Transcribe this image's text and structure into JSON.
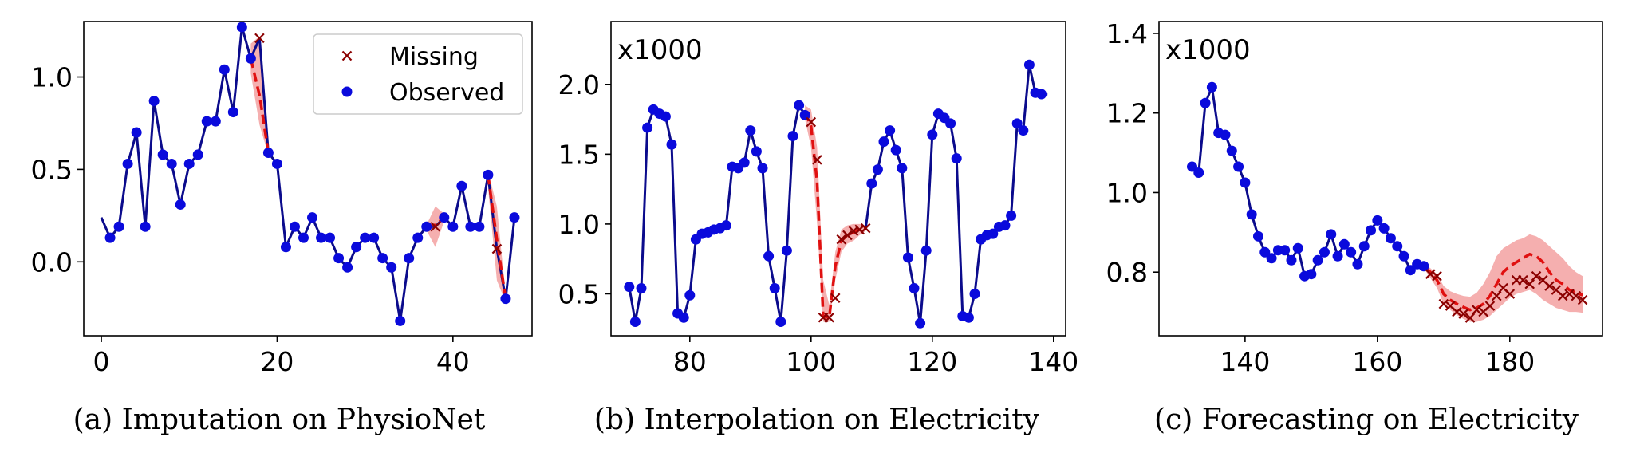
{
  "colors": {
    "observed": "#0a0adc",
    "observed_line": "#0b0b8c",
    "missing": "#8b0000",
    "pred_line": "#e01010",
    "band": "#f4a6a6"
  },
  "chart_data": [
    {
      "type": "line",
      "caption": "(a)  Imputation on PhysioNet",
      "xlim": [
        -2,
        49
      ],
      "ylim": [
        -0.4,
        1.3
      ],
      "xticks": [
        0,
        20,
        40
      ],
      "xtick_labels": [
        "0",
        "20",
        "40"
      ],
      "yticks": [
        0.0,
        0.5,
        1.0
      ],
      "ytick_labels": [
        "0.0",
        "0.5",
        "1.0"
      ],
      "multiplier": "",
      "legend": {
        "position": "top-right",
        "missing_label": "Missing",
        "observed_label": "Observed"
      },
      "observed_line_x": [
        0,
        1,
        2,
        3,
        4,
        5,
        6,
        7,
        8,
        9,
        10,
        11,
        12,
        13,
        14,
        15,
        16,
        17,
        18,
        19,
        20,
        21,
        22,
        23,
        24,
        25,
        26,
        27,
        28,
        29,
        30,
        31,
        32,
        33,
        34,
        35,
        36,
        37,
        38,
        39,
        40,
        41,
        42,
        43,
        44,
        45,
        46,
        47
      ],
      "observed_line_y": [
        0.24,
        0.13,
        0.19,
        0.53,
        0.7,
        0.19,
        0.87,
        0.58,
        0.53,
        0.31,
        0.53,
        0.58,
        0.76,
        0.76,
        1.04,
        0.81,
        1.27,
        1.1,
        1.21,
        0.59,
        0.53,
        0.08,
        0.19,
        0.13,
        0.24,
        0.13,
        0.13,
        0.02,
        -0.03,
        0.08,
        0.13,
        0.13,
        0.02,
        -0.03,
        -0.32,
        0.02,
        0.13,
        0.19,
        0.19,
        0.24,
        0.19,
        0.41,
        0.19,
        0.19,
        0.47,
        0.07,
        -0.2,
        0.24
      ],
      "observed_x": [
        1,
        2,
        3,
        4,
        5,
        6,
        7,
        8,
        9,
        10,
        11,
        12,
        13,
        14,
        15,
        16,
        17,
        19,
        20,
        21,
        22,
        23,
        24,
        25,
        26,
        27,
        28,
        29,
        30,
        31,
        32,
        33,
        34,
        35,
        36,
        37,
        39,
        40,
        41,
        42,
        43,
        44,
        46,
        47
      ],
      "observed_y": [
        0.13,
        0.19,
        0.53,
        0.7,
        0.19,
        0.87,
        0.58,
        0.53,
        0.31,
        0.53,
        0.58,
        0.76,
        0.76,
        1.04,
        0.81,
        1.27,
        1.1,
        0.59,
        0.53,
        0.08,
        0.19,
        0.13,
        0.24,
        0.13,
        0.13,
        0.02,
        -0.03,
        0.08,
        0.13,
        0.13,
        0.02,
        -0.03,
        -0.32,
        0.02,
        0.13,
        0.19,
        0.24,
        0.19,
        0.41,
        0.19,
        0.19,
        0.47,
        -0.2,
        0.24
      ],
      "missing_x": [
        18,
        38,
        45
      ],
      "missing_y": [
        1.21,
        0.19,
        0.07
      ],
      "prediction_segments": [
        {
          "x": [
            17,
            18,
            19
          ],
          "y": [
            1.1,
            0.9,
            0.59
          ],
          "upper": [
            1.18,
            1.22,
            0.66
          ],
          "lower": [
            1.02,
            0.74,
            0.58
          ]
        },
        {
          "x": [
            37,
            38,
            39
          ],
          "y": [
            0.19,
            0.2,
            0.24
          ],
          "upper": [
            0.2,
            0.3,
            0.26
          ],
          "lower": [
            0.17,
            0.08,
            0.22
          ]
        },
        {
          "x": [
            44,
            45,
            46
          ],
          "y": [
            0.47,
            0.12,
            -0.2
          ],
          "upper": [
            0.49,
            0.3,
            -0.18
          ],
          "lower": [
            0.4,
            -0.1,
            -0.22
          ]
        }
      ]
    },
    {
      "type": "line",
      "caption": "(b)  Interpolation on Electricity",
      "xlim": [
        67,
        142
      ],
      "ylim": [
        0.2,
        2.45
      ],
      "xticks": [
        80,
        100,
        120,
        140
      ],
      "xtick_labels": [
        "80",
        "100",
        "120",
        "140"
      ],
      "yticks": [
        0.5,
        1.0,
        1.5,
        2.0
      ],
      "ytick_labels": [
        "0.5",
        "1.0",
        "1.5",
        "2.0"
      ],
      "multiplier": "x1000",
      "observed_line_x": [
        70,
        71,
        72,
        73,
        74,
        75,
        76,
        77,
        78,
        79,
        80,
        81,
        82,
        83,
        84,
        85,
        86,
        87,
        88,
        89,
        90,
        91,
        92,
        93,
        94,
        95,
        96,
        97,
        98,
        99
      ],
      "observed_line_y": [
        0.55,
        0.3,
        0.54,
        1.69,
        1.82,
        1.79,
        1.77,
        1.57,
        0.36,
        0.33,
        0.49,
        0.89,
        0.93,
        0.94,
        0.96,
        0.97,
        0.99,
        1.41,
        1.4,
        1.44,
        1.67,
        1.52,
        1.4,
        0.77,
        0.54,
        0.3,
        0.81,
        1.63,
        1.85,
        1.78
      ],
      "observed_line2_x": [
        109,
        110,
        111,
        112,
        113,
        114,
        115,
        116,
        117,
        118,
        119,
        120,
        121,
        122,
        123,
        124,
        125,
        126,
        127,
        128,
        129,
        130,
        131,
        132,
        133,
        134,
        135,
        136,
        137,
        138,
        139
      ],
      "observed_line2_y": [
        0.97,
        1.29,
        1.39,
        1.59,
        1.67,
        1.53,
        1.4,
        0.76,
        0.54,
        0.29,
        0.81,
        1.64,
        1.79,
        1.76,
        1.72,
        1.47,
        0.34,
        0.33,
        0.5,
        0.89,
        0.92,
        0.93,
        0.98,
        0.99,
        1.06,
        1.72,
        1.67,
        2.14,
        1.94,
        1.93,
        1.93
      ],
      "observed_x": [
        70,
        71,
        72,
        73,
        74,
        75,
        76,
        77,
        78,
        79,
        80,
        81,
        82,
        83,
        84,
        85,
        86,
        87,
        88,
        89,
        90,
        91,
        92,
        93,
        94,
        95,
        96,
        97,
        98,
        99,
        110,
        111,
        112,
        113,
        114,
        115,
        116,
        117,
        118,
        119,
        120,
        121,
        122,
        123,
        124,
        125,
        126,
        127,
        128,
        129,
        130,
        131,
        132,
        133,
        134,
        135,
        136,
        137,
        138
      ],
      "observed_y": [
        0.55,
        0.3,
        0.54,
        1.69,
        1.82,
        1.79,
        1.77,
        1.57,
        0.36,
        0.33,
        0.49,
        0.89,
        0.93,
        0.94,
        0.96,
        0.97,
        0.99,
        1.41,
        1.4,
        1.44,
        1.67,
        1.52,
        1.4,
        0.77,
        0.54,
        0.3,
        0.81,
        1.63,
        1.85,
        1.78,
        1.29,
        1.39,
        1.59,
        1.67,
        1.53,
        1.4,
        0.76,
        0.54,
        0.29,
        0.81,
        1.64,
        1.79,
        1.76,
        1.72,
        1.47,
        0.34,
        0.33,
        0.5,
        0.89,
        0.92,
        0.93,
        0.98,
        0.99,
        1.06,
        1.72,
        1.67,
        2.14,
        1.94,
        1.93
      ],
      "missing_x": [
        100,
        101,
        102,
        103,
        104,
        105,
        106,
        107,
        108,
        109
      ],
      "missing_y": [
        1.73,
        1.46,
        0.33,
        0.33,
        0.47,
        0.89,
        0.92,
        0.95,
        0.96,
        0.97
      ],
      "prediction_segments": [
        {
          "x": [
            99,
            100,
            101,
            102,
            103,
            104,
            105,
            106,
            107,
            108,
            109
          ],
          "y": [
            1.8,
            1.7,
            1.3,
            0.34,
            0.33,
            0.7,
            0.88,
            0.92,
            0.94,
            0.96,
            0.97
          ],
          "upper": [
            1.85,
            1.82,
            1.55,
            0.6,
            0.42,
            0.8,
            0.96,
            0.99,
            1.0,
            1.0,
            0.99
          ],
          "lower": [
            1.75,
            1.55,
            1.0,
            0.3,
            0.3,
            0.6,
            0.8,
            0.86,
            0.88,
            0.92,
            0.95
          ]
        }
      ]
    },
    {
      "type": "line",
      "caption": "(c)  Forecasting on Electricity",
      "xlim": [
        127,
        194
      ],
      "ylim": [
        0.64,
        1.43
      ],
      "xticks": [
        140,
        160,
        180
      ],
      "xtick_labels": [
        "140",
        "160",
        "180"
      ],
      "yticks": [
        0.8,
        1.0,
        1.2,
        1.4
      ],
      "ytick_labels": [
        "0.8",
        "1.0",
        "1.2",
        "1.4"
      ],
      "multiplier": "x1000",
      "observed_line_x": [
        132,
        133,
        134,
        135,
        136,
        137,
        138,
        139,
        140,
        141,
        142,
        143,
        144,
        145,
        146,
        147,
        148,
        149,
        150,
        151,
        152,
        153,
        154,
        155,
        156,
        157,
        158,
        159,
        160,
        161,
        162,
        163,
        164,
        165,
        166,
        167
      ],
      "observed_line_y": [
        1.065,
        1.05,
        1.225,
        1.265,
        1.15,
        1.145,
        1.105,
        1.065,
        1.025,
        0.945,
        0.89,
        0.85,
        0.835,
        0.855,
        0.855,
        0.83,
        0.86,
        0.79,
        0.795,
        0.83,
        0.85,
        0.895,
        0.84,
        0.87,
        0.85,
        0.82,
        0.865,
        0.905,
        0.93,
        0.91,
        0.885,
        0.865,
        0.84,
        0.805,
        0.82,
        0.815
      ],
      "observed_x": [
        132,
        133,
        134,
        135,
        136,
        137,
        138,
        139,
        140,
        141,
        142,
        143,
        144,
        145,
        146,
        147,
        148,
        149,
        150,
        151,
        152,
        153,
        154,
        155,
        156,
        157,
        158,
        159,
        160,
        161,
        162,
        163,
        164,
        165,
        166,
        167
      ],
      "observed_y": [
        1.065,
        1.05,
        1.225,
        1.265,
        1.15,
        1.145,
        1.105,
        1.065,
        1.025,
        0.945,
        0.89,
        0.85,
        0.835,
        0.855,
        0.855,
        0.83,
        0.86,
        0.79,
        0.795,
        0.83,
        0.85,
        0.895,
        0.84,
        0.87,
        0.85,
        0.82,
        0.865,
        0.905,
        0.93,
        0.91,
        0.885,
        0.865,
        0.84,
        0.805,
        0.82,
        0.815
      ],
      "missing_x": [
        168,
        169,
        170,
        171,
        172,
        173,
        174,
        175,
        176,
        177,
        178,
        179,
        180,
        181,
        182,
        183,
        184,
        185,
        186,
        187,
        188,
        189,
        190,
        191
      ],
      "missing_y": [
        0.795,
        0.79,
        0.72,
        0.715,
        0.7,
        0.695,
        0.685,
        0.705,
        0.7,
        0.715,
        0.74,
        0.76,
        0.745,
        0.78,
        0.78,
        0.77,
        0.79,
        0.78,
        0.765,
        0.755,
        0.74,
        0.745,
        0.74,
        0.73
      ],
      "prediction_segments": [
        {
          "x": [
            167,
            168,
            169,
            170,
            171,
            172,
            173,
            174,
            175,
            176,
            177,
            178,
            179,
            180,
            181,
            182,
            183,
            184,
            185,
            186,
            187,
            188,
            189,
            190,
            191
          ],
          "y": [
            0.815,
            0.8,
            0.78,
            0.745,
            0.73,
            0.72,
            0.712,
            0.705,
            0.71,
            0.72,
            0.74,
            0.77,
            0.8,
            0.815,
            0.825,
            0.835,
            0.845,
            0.84,
            0.825,
            0.8,
            0.78,
            0.77,
            0.755,
            0.748,
            0.742
          ],
          "upper": [
            0.82,
            0.81,
            0.795,
            0.765,
            0.752,
            0.745,
            0.74,
            0.738,
            0.748,
            0.77,
            0.8,
            0.84,
            0.86,
            0.87,
            0.88,
            0.885,
            0.895,
            0.89,
            0.88,
            0.865,
            0.85,
            0.835,
            0.815,
            0.8,
            0.79
          ],
          "lower": [
            0.81,
            0.785,
            0.76,
            0.72,
            0.705,
            0.692,
            0.682,
            0.675,
            0.675,
            0.68,
            0.69,
            0.705,
            0.72,
            0.735,
            0.745,
            0.75,
            0.755,
            0.745,
            0.73,
            0.72,
            0.71,
            0.705,
            0.7,
            0.7,
            0.698
          ]
        }
      ]
    }
  ]
}
